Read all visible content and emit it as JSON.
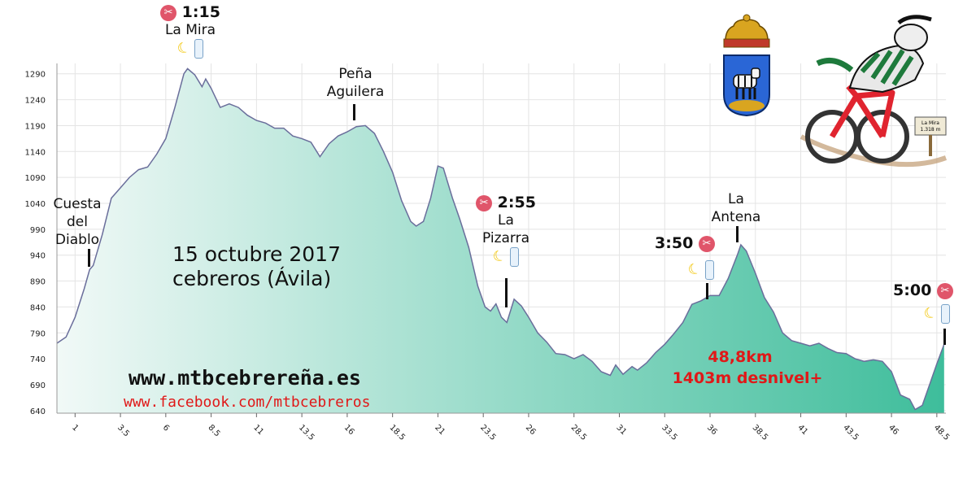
{
  "chart_data": {
    "type": "area",
    "x_ticks": [
      "1",
      "3.5",
      "6",
      "8.5",
      "11",
      "13.5",
      "16",
      "18.5",
      "21",
      "23.5",
      "26",
      "28.5",
      "31",
      "33.5",
      "36",
      "38.5",
      "41",
      "43.5",
      "46",
      "48.5"
    ],
    "y_ticks": [
      640,
      690,
      740,
      790,
      840,
      890,
      940,
      990,
      1040,
      1090,
      1140,
      1190,
      1240,
      1290
    ],
    "xlim": [
      0.0,
      49.0
    ],
    "ylim": [
      635,
      1310
    ],
    "x_unit": "km",
    "y_unit": "m",
    "grid": true,
    "fill_colors": [
      "#f1f9f7",
      "#3ebd9b"
    ],
    "line_color": "#6a6e9b",
    "profile": [
      {
        "x": 0.0,
        "y": 770
      },
      {
        "x": 0.5,
        "y": 782
      },
      {
        "x": 1.0,
        "y": 820
      },
      {
        "x": 1.5,
        "y": 875
      },
      {
        "x": 1.8,
        "y": 912
      },
      {
        "x": 2.0,
        "y": 920
      },
      {
        "x": 2.5,
        "y": 980
      },
      {
        "x": 3.0,
        "y": 1050
      },
      {
        "x": 3.5,
        "y": 1070
      },
      {
        "x": 4.0,
        "y": 1090
      },
      {
        "x": 4.5,
        "y": 1105
      },
      {
        "x": 5.0,
        "y": 1110
      },
      {
        "x": 5.5,
        "y": 1135
      },
      {
        "x": 6.0,
        "y": 1165
      },
      {
        "x": 6.5,
        "y": 1225
      },
      {
        "x": 7.0,
        "y": 1290
      },
      {
        "x": 7.2,
        "y": 1300
      },
      {
        "x": 7.6,
        "y": 1288
      },
      {
        "x": 8.0,
        "y": 1265
      },
      {
        "x": 8.2,
        "y": 1280
      },
      {
        "x": 8.5,
        "y": 1262
      },
      {
        "x": 9.0,
        "y": 1225
      },
      {
        "x": 9.5,
        "y": 1232
      },
      {
        "x": 10.0,
        "y": 1225
      },
      {
        "x": 10.5,
        "y": 1210
      },
      {
        "x": 11.0,
        "y": 1200
      },
      {
        "x": 11.5,
        "y": 1195
      },
      {
        "x": 12.0,
        "y": 1185
      },
      {
        "x": 12.5,
        "y": 1185
      },
      {
        "x": 13.0,
        "y": 1170
      },
      {
        "x": 13.5,
        "y": 1165
      },
      {
        "x": 14.0,
        "y": 1158
      },
      {
        "x": 14.5,
        "y": 1130
      },
      {
        "x": 15.0,
        "y": 1155
      },
      {
        "x": 15.5,
        "y": 1170
      },
      {
        "x": 16.0,
        "y": 1178
      },
      {
        "x": 16.5,
        "y": 1188
      },
      {
        "x": 17.0,
        "y": 1190
      },
      {
        "x": 17.5,
        "y": 1175
      },
      {
        "x": 18.0,
        "y": 1140
      },
      {
        "x": 18.5,
        "y": 1100
      },
      {
        "x": 19.0,
        "y": 1045
      },
      {
        "x": 19.5,
        "y": 1005
      },
      {
        "x": 19.8,
        "y": 996
      },
      {
        "x": 20.2,
        "y": 1005
      },
      {
        "x": 20.6,
        "y": 1050
      },
      {
        "x": 21.0,
        "y": 1112
      },
      {
        "x": 21.3,
        "y": 1108
      },
      {
        "x": 21.8,
        "y": 1050
      },
      {
        "x": 22.2,
        "y": 1010
      },
      {
        "x": 22.7,
        "y": 955
      },
      {
        "x": 23.2,
        "y": 880
      },
      {
        "x": 23.6,
        "y": 840
      },
      {
        "x": 23.9,
        "y": 832
      },
      {
        "x": 24.2,
        "y": 846
      },
      {
        "x": 24.5,
        "y": 820
      },
      {
        "x": 24.8,
        "y": 810
      },
      {
        "x": 25.2,
        "y": 855
      },
      {
        "x": 25.6,
        "y": 842
      },
      {
        "x": 26.0,
        "y": 820
      },
      {
        "x": 26.5,
        "y": 790
      },
      {
        "x": 27.0,
        "y": 772
      },
      {
        "x": 27.5,
        "y": 750
      },
      {
        "x": 28.0,
        "y": 748
      },
      {
        "x": 28.5,
        "y": 740
      },
      {
        "x": 29.0,
        "y": 748
      },
      {
        "x": 29.5,
        "y": 735
      },
      {
        "x": 30.0,
        "y": 715
      },
      {
        "x": 30.5,
        "y": 708
      },
      {
        "x": 30.8,
        "y": 728
      },
      {
        "x": 31.2,
        "y": 710
      },
      {
        "x": 31.7,
        "y": 725
      },
      {
        "x": 32.0,
        "y": 718
      },
      {
        "x": 32.5,
        "y": 732
      },
      {
        "x": 33.0,
        "y": 752
      },
      {
        "x": 33.5,
        "y": 768
      },
      {
        "x": 34.0,
        "y": 788
      },
      {
        "x": 34.5,
        "y": 810
      },
      {
        "x": 35.0,
        "y": 845
      },
      {
        "x": 35.5,
        "y": 852
      },
      {
        "x": 36.0,
        "y": 862
      },
      {
        "x": 36.5,
        "y": 862
      },
      {
        "x": 37.0,
        "y": 895
      },
      {
        "x": 37.5,
        "y": 940
      },
      {
        "x": 37.7,
        "y": 960
      },
      {
        "x": 38.0,
        "y": 948
      },
      {
        "x": 38.5,
        "y": 905
      },
      {
        "x": 39.0,
        "y": 858
      },
      {
        "x": 39.5,
        "y": 830
      },
      {
        "x": 40.0,
        "y": 790
      },
      {
        "x": 40.5,
        "y": 775
      },
      {
        "x": 41.0,
        "y": 770
      },
      {
        "x": 41.5,
        "y": 765
      },
      {
        "x": 42.0,
        "y": 770
      },
      {
        "x": 42.5,
        "y": 760
      },
      {
        "x": 43.0,
        "y": 752
      },
      {
        "x": 43.5,
        "y": 750
      },
      {
        "x": 44.0,
        "y": 740
      },
      {
        "x": 44.5,
        "y": 735
      },
      {
        "x": 45.0,
        "y": 738
      },
      {
        "x": 45.5,
        "y": 735
      },
      {
        "x": 46.0,
        "y": 715
      },
      {
        "x": 46.5,
        "y": 670
      },
      {
        "x": 47.0,
        "y": 662
      },
      {
        "x": 47.3,
        "y": 642
      },
      {
        "x": 47.7,
        "y": 650
      },
      {
        "x": 48.0,
        "y": 680
      },
      {
        "x": 48.5,
        "y": 730
      },
      {
        "x": 48.9,
        "y": 768
      }
    ]
  },
  "annotations": {
    "la_mira": {
      "time": "1:15",
      "name": "La Mira",
      "x": 7.2
    },
    "pena_aguilera": {
      "name_line1": "Peña",
      "name_line2": "Aguilera",
      "x": 16.5
    },
    "cuesta_del_diablo": {
      "line1": "Cuesta",
      "line2": "del",
      "line3": "Diablo",
      "x": 1.8
    },
    "la_pizarra": {
      "time": "2:55",
      "line1": "La",
      "line2": "Pizarra",
      "x": 24.8
    },
    "stop_3": {
      "time": "3:50",
      "x": 35.8
    },
    "la_antena": {
      "line1": "La",
      "line2": "Antena",
      "x": 37.7
    },
    "finish": {
      "time": "5:00",
      "x": 48.9
    }
  },
  "event": {
    "date": "15 octubre 2017",
    "place": "cebreros (Ávila)",
    "website": "www.mtbcebrereña.es",
    "facebook": "www.facebook.com/mtbcebreros",
    "distance": "48,8km",
    "elevation_gain": "1403m desnivel+"
  },
  "badge": {
    "name": "La Mira",
    "elevation": "1.318 m"
  },
  "icons": {
    "scissors": "scissors-icon",
    "banana": "banana-icon",
    "bottle": "water-bottle-icon",
    "crest": "coat-of-arms-icon",
    "mascot": "zebra-cyclist-icon"
  }
}
